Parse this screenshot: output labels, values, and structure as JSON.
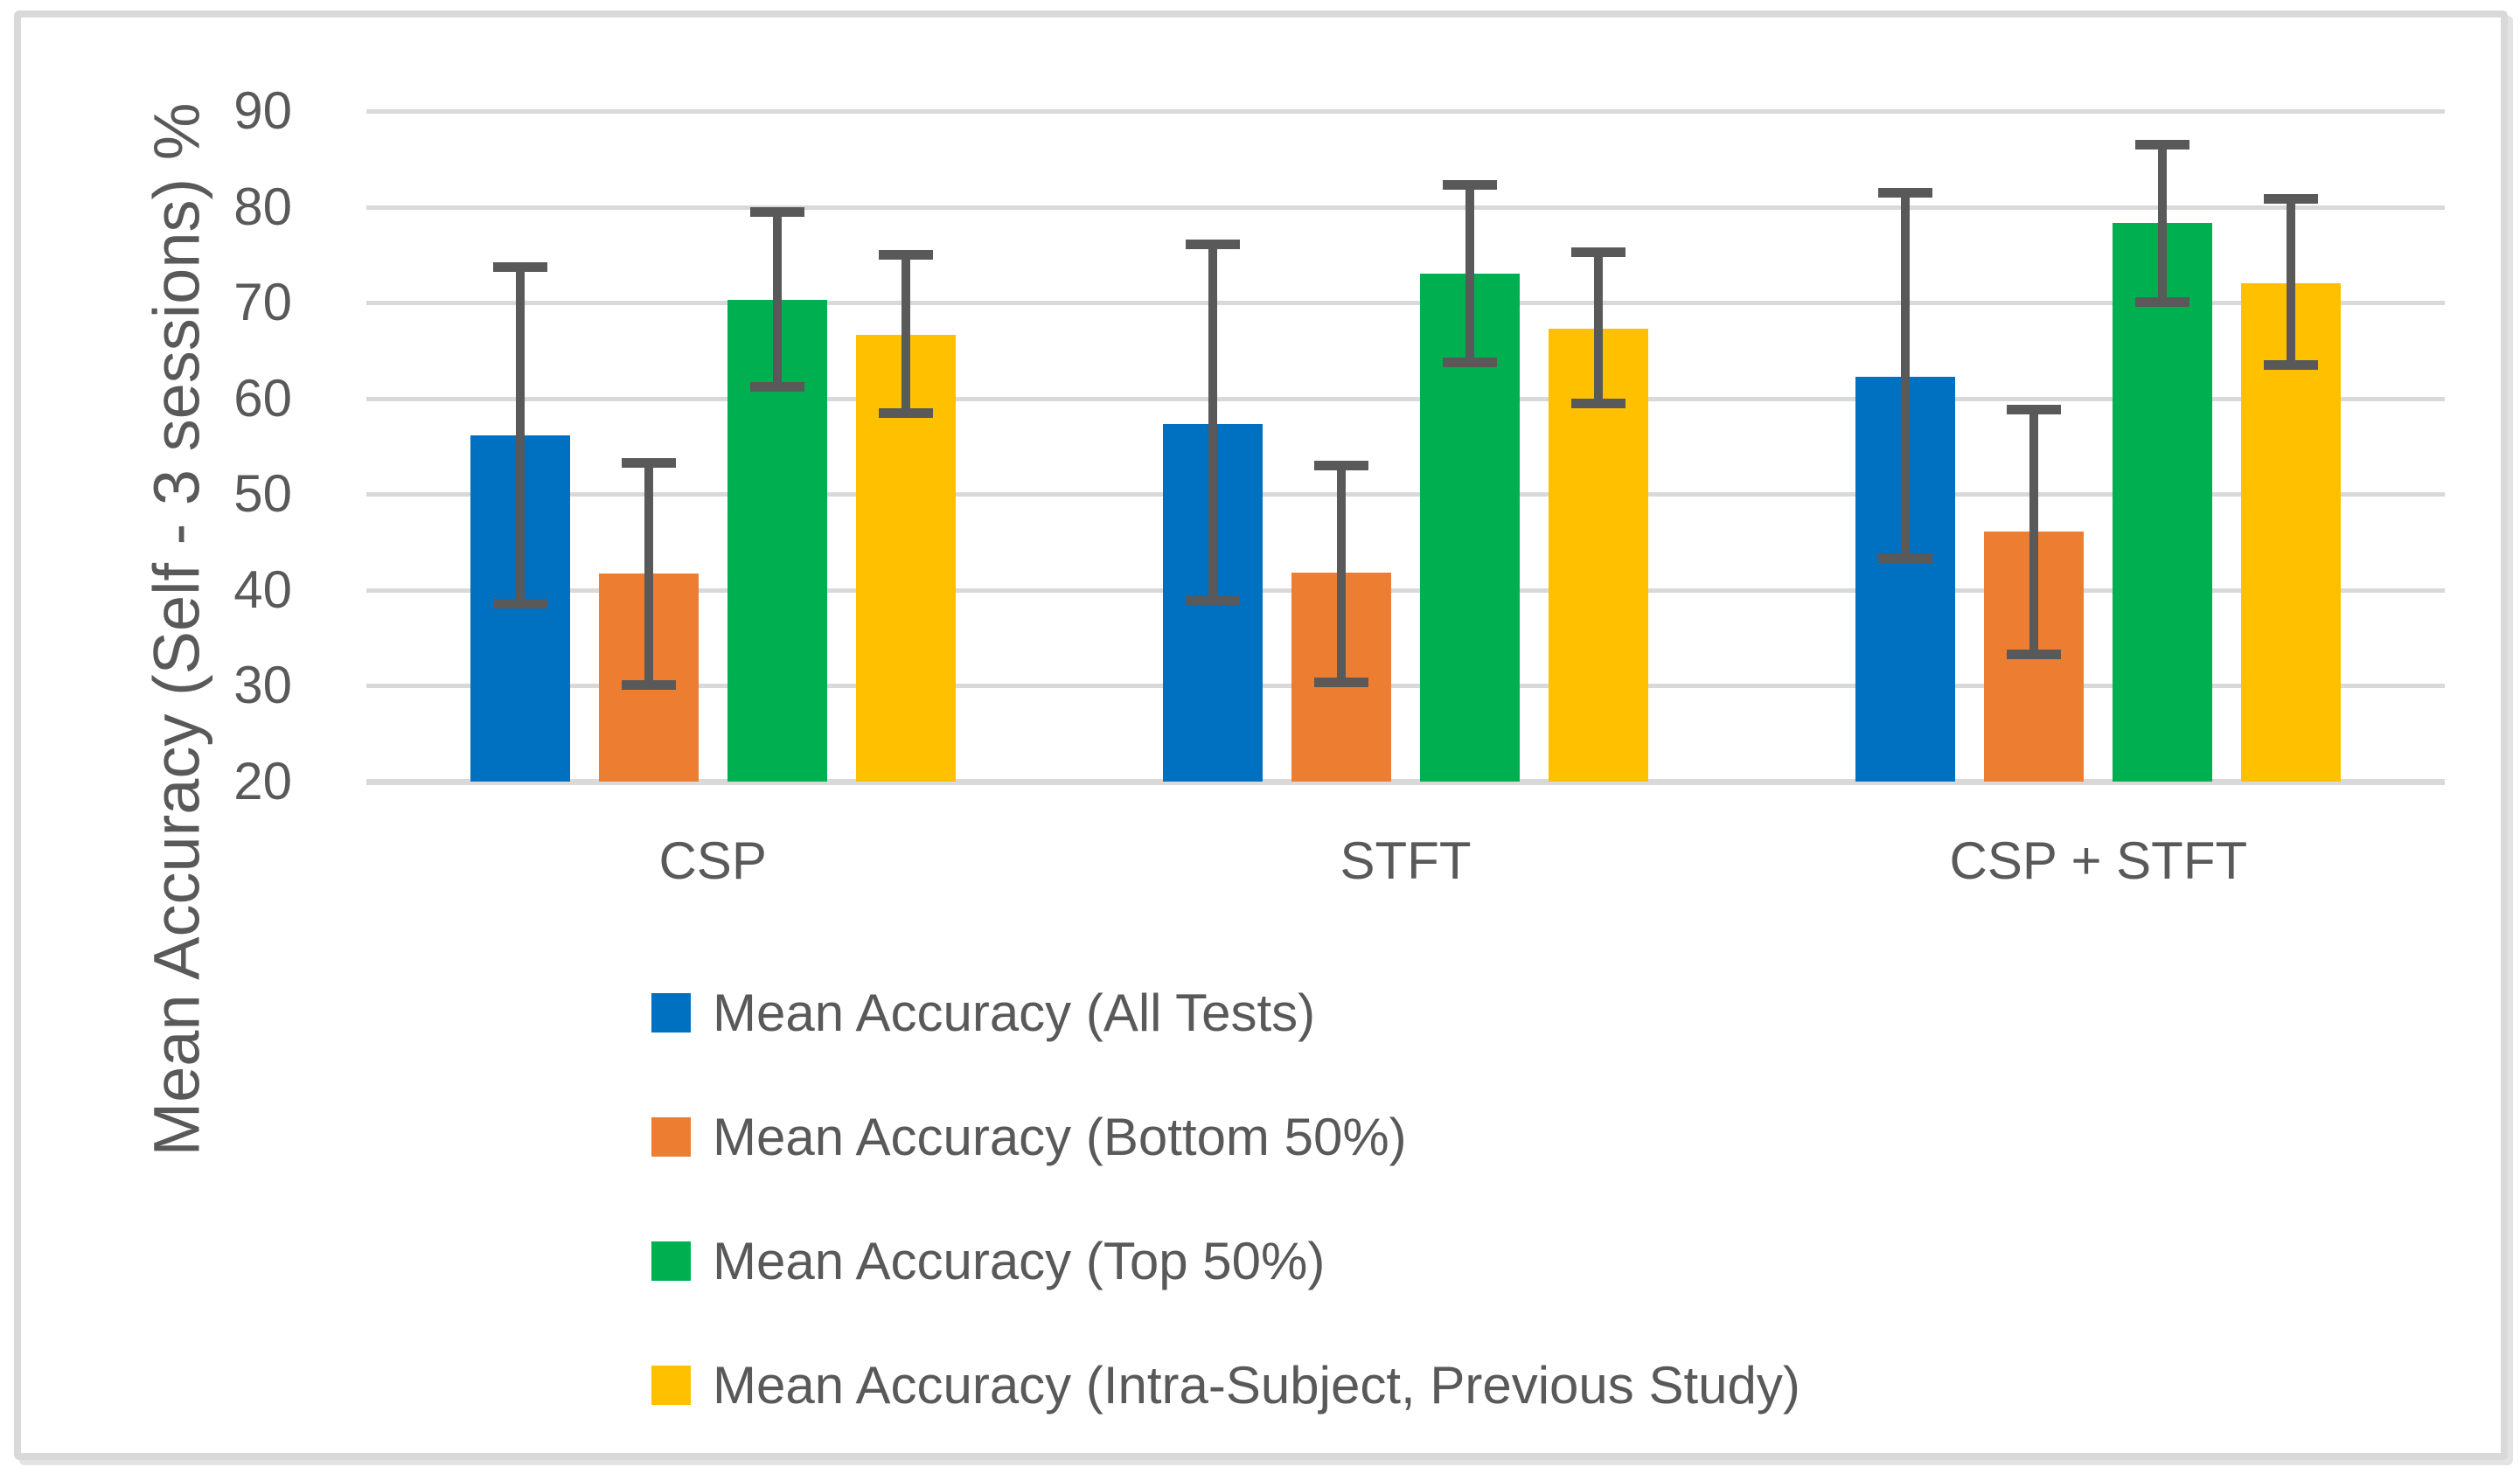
{
  "chart_data": {
    "type": "bar",
    "title": "",
    "xlabel": "",
    "ylabel": "Mean Accuracy (Self - 3 sessions) %",
    "categories": [
      "CSP",
      "STFT",
      "CSP + STFT"
    ],
    "y_axis": {
      "min": 20,
      "max": 90,
      "step": 10,
      "ticks": [
        "90",
        "80",
        "70",
        "60",
        "50",
        "40",
        "30",
        "20"
      ]
    },
    "grid": true,
    "legend_position": "bottom-left",
    "series": [
      {
        "name": "Mean Accuracy (All Tests)",
        "color": "#0070C0",
        "values": [
          56.1,
          57.3,
          62.3
        ],
        "error_low": [
          38.1,
          38.3,
          42.8
        ],
        "error_high": [
          74.2,
          76.6,
          82.0
        ]
      },
      {
        "name": "Mean Accuracy (Bottom 50%)",
        "color": "#ED7D31",
        "values": [
          41.7,
          41.8,
          46.1
        ],
        "error_low": [
          29.6,
          29.9,
          32.8
        ],
        "error_high": [
          53.8,
          53.5,
          59.3
        ]
      },
      {
        "name": "Mean Accuracy (Top 50%)",
        "color": "#00B050",
        "values": [
          70.3,
          73.0,
          78.3
        ],
        "error_low": [
          60.7,
          63.3,
          69.6
        ],
        "error_high": [
          80.0,
          82.8,
          87.0
        ]
      },
      {
        "name": "Mean Accuracy (Intra-Subject, Previous Study)",
        "color": "#FFC000",
        "values": [
          66.6,
          67.3,
          72.0
        ],
        "error_low": [
          58.0,
          59.0,
          63.0
        ],
        "error_high": [
          75.5,
          75.8,
          81.3
        ]
      }
    ],
    "colors": {
      "gridline": "#D9D9D9",
      "text": "#595959",
      "error_bar": "#595959",
      "frame": "#D9D9D9"
    }
  }
}
